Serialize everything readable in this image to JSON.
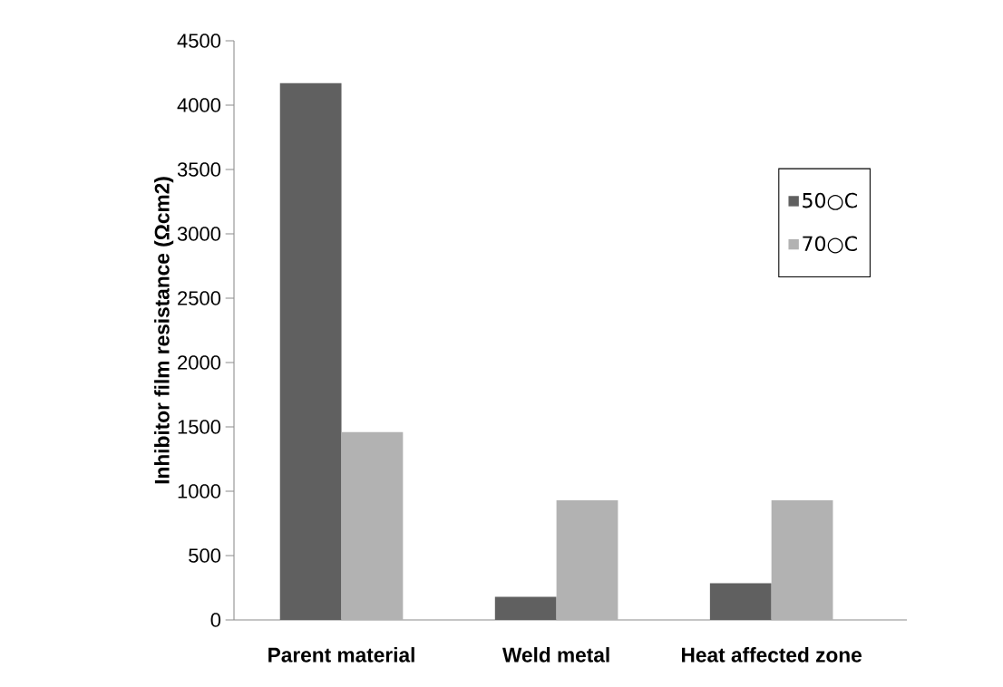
{
  "chart_data": {
    "type": "bar",
    "ylabel": "Inhibitor film resistance  (Ωcm2)",
    "categories": [
      "Parent material",
      "Weld metal",
      "Heat affected zone"
    ],
    "series": [
      {
        "name": "50○C",
        "color": "#606060",
        "values": [
          4170,
          180,
          285
        ]
      },
      {
        "name": "70○C",
        "color": "#b2b2b2",
        "values": [
          1460,
          930,
          930
        ]
      }
    ],
    "ylim": [
      0,
      4500
    ],
    "yticks": [
      0,
      500,
      1000,
      1500,
      2000,
      2500,
      3000,
      3500,
      4000,
      4500
    ],
    "grid": false,
    "legend": "right"
  }
}
